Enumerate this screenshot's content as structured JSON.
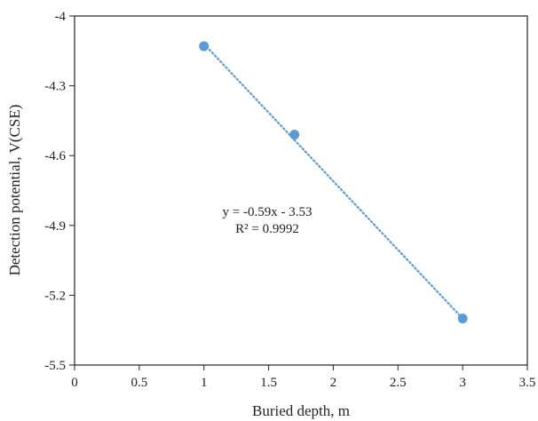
{
  "chart_data": {
    "type": "scatter",
    "xlabel": "Buried depth, m",
    "ylabel": "Detection potential,  V(CSE)",
    "xlim": [
      0,
      3.5
    ],
    "ylim": [
      -5.5,
      -4
    ],
    "xticks": [
      "0",
      "0.5",
      "1",
      "1.5",
      "2",
      "2.5",
      "3",
      "3.5"
    ],
    "yticks": [
      "-4",
      "-4.3",
      "-4.6",
      "-4.9",
      "-5.2",
      "-5.5"
    ],
    "grid": false,
    "series": [
      {
        "points": [
          {
            "x": 1,
            "y": -4.13
          },
          {
            "x": 1.7,
            "y": -4.51
          },
          {
            "x": 3,
            "y": -5.3
          }
        ],
        "color": "#5b9bd5"
      }
    ],
    "trendline": {
      "type": "linear",
      "slope": -0.59,
      "intercept": -3.53,
      "x_range": [
        1,
        3
      ],
      "style": "dotted",
      "color": "#5b9bd5"
    },
    "annotations": {
      "equation": "y = -0.59x - 3.53",
      "r_squared": "R² = 0.9992"
    }
  }
}
